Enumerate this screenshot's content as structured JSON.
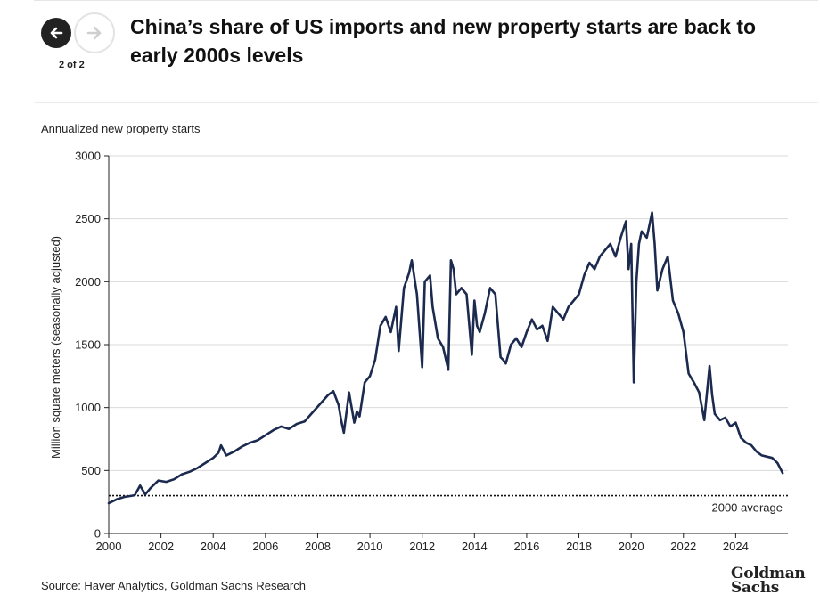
{
  "header": {
    "title": "China’s share of US imports and new property starts are back to early 2000s levels",
    "page_indicator": "2 of 2"
  },
  "icons": {
    "prev": "arrow-left-icon",
    "next": "arrow-right-icon"
  },
  "chart_data": {
    "type": "line",
    "title": "Annualized new property starts",
    "ylabel": "Million square meters (seasonally adjusted)",
    "xlabel": "",
    "ylim": [
      0,
      3000
    ],
    "xlim": [
      2000,
      2026
    ],
    "yticks": [
      0,
      500,
      1000,
      1500,
      2000,
      2500,
      3000
    ],
    "xticks": [
      "2000",
      "2002",
      "2004",
      "2006",
      "2008",
      "2010",
      "2012",
      "2014",
      "2016",
      "2018",
      "2020",
      "2022",
      "2024"
    ],
    "grid": "horizontal",
    "series": [
      {
        "name": "New property starts",
        "color": "#1b2a4e",
        "x": [
          2000.0,
          2000.3,
          2000.6,
          2000.9,
          2001.0,
          2001.2,
          2001.4,
          2001.6,
          2001.9,
          2002.2,
          2002.5,
          2002.8,
          2003.1,
          2003.4,
          2003.7,
          2004.0,
          2004.2,
          2004.3,
          2004.5,
          2004.8,
          2005.1,
          2005.4,
          2005.7,
          2006.0,
          2006.3,
          2006.6,
          2006.9,
          2007.2,
          2007.5,
          2007.8,
          2008.1,
          2008.4,
          2008.6,
          2008.8,
          2008.9,
          2009.0,
          2009.2,
          2009.4,
          2009.5,
          2009.6,
          2009.8,
          2010.0,
          2010.2,
          2010.4,
          2010.6,
          2010.8,
          2011.0,
          2011.1,
          2011.3,
          2011.5,
          2011.6,
          2011.8,
          2012.0,
          2012.1,
          2012.3,
          2012.4,
          2012.6,
          2012.8,
          2013.0,
          2013.1,
          2013.2,
          2013.3,
          2013.5,
          2013.7,
          2013.9,
          2014.0,
          2014.1,
          2014.2,
          2014.4,
          2014.6,
          2014.8,
          2015.0,
          2015.1,
          2015.2,
          2015.4,
          2015.6,
          2015.8,
          2016.0,
          2016.2,
          2016.4,
          2016.6,
          2016.8,
          2017.0,
          2017.2,
          2017.4,
          2017.6,
          2017.8,
          2018.0,
          2018.2,
          2018.4,
          2018.6,
          2018.8,
          2019.0,
          2019.2,
          2019.4,
          2019.6,
          2019.8,
          2019.9,
          2020.0,
          2020.1,
          2020.2,
          2020.3,
          2020.4,
          2020.6,
          2020.8,
          2020.9,
          2021.0,
          2021.2,
          2021.4,
          2021.6,
          2021.8,
          2022.0,
          2022.2,
          2022.4,
          2022.6,
          2022.8,
          2023.0,
          2023.1,
          2023.2,
          2023.4,
          2023.6,
          2023.8,
          2024.0,
          2024.2,
          2024.4,
          2024.6,
          2024.8,
          2025.0,
          2025.2,
          2025.4,
          2025.6,
          2025.7,
          2025.8
        ],
        "values": [
          240,
          270,
          290,
          300,
          305,
          380,
          310,
          360,
          420,
          410,
          430,
          470,
          490,
          520,
          560,
          600,
          640,
          700,
          620,
          650,
          690,
          720,
          740,
          780,
          820,
          850,
          830,
          870,
          890,
          960,
          1030,
          1100,
          1130,
          1020,
          900,
          800,
          1120,
          880,
          970,
          930,
          1200,
          1250,
          1380,
          1650,
          1720,
          1600,
          1800,
          1450,
          1950,
          2070,
          2170,
          1900,
          1320,
          2000,
          2050,
          1800,
          1550,
          1480,
          1300,
          2170,
          2100,
          1900,
          1950,
          1900,
          1420,
          1850,
          1650,
          1600,
          1750,
          1950,
          1900,
          1400,
          1380,
          1350,
          1500,
          1550,
          1480,
          1600,
          1700,
          1620,
          1650,
          1530,
          1800,
          1750,
          1700,
          1800,
          1850,
          1900,
          2050,
          2150,
          2100,
          2200,
          2250,
          2300,
          2200,
          2350,
          2480,
          2100,
          2300,
          1200,
          2000,
          2300,
          2400,
          2350,
          2550,
          2300,
          1930,
          2100,
          2200,
          1850,
          1750,
          1600,
          1270,
          1200,
          1120,
          900,
          1330,
          1100,
          950,
          900,
          920,
          850,
          880,
          760,
          720,
          700,
          650,
          620,
          610,
          600,
          560,
          520,
          480
        ]
      }
    ],
    "reference_line": {
      "value": 300,
      "label": "2000 average",
      "style": "dotted"
    }
  },
  "source": "Source: Haver Analytics, Goldman Sachs Research",
  "logo": {
    "line1": "Goldman",
    "line2": "Sachs"
  }
}
